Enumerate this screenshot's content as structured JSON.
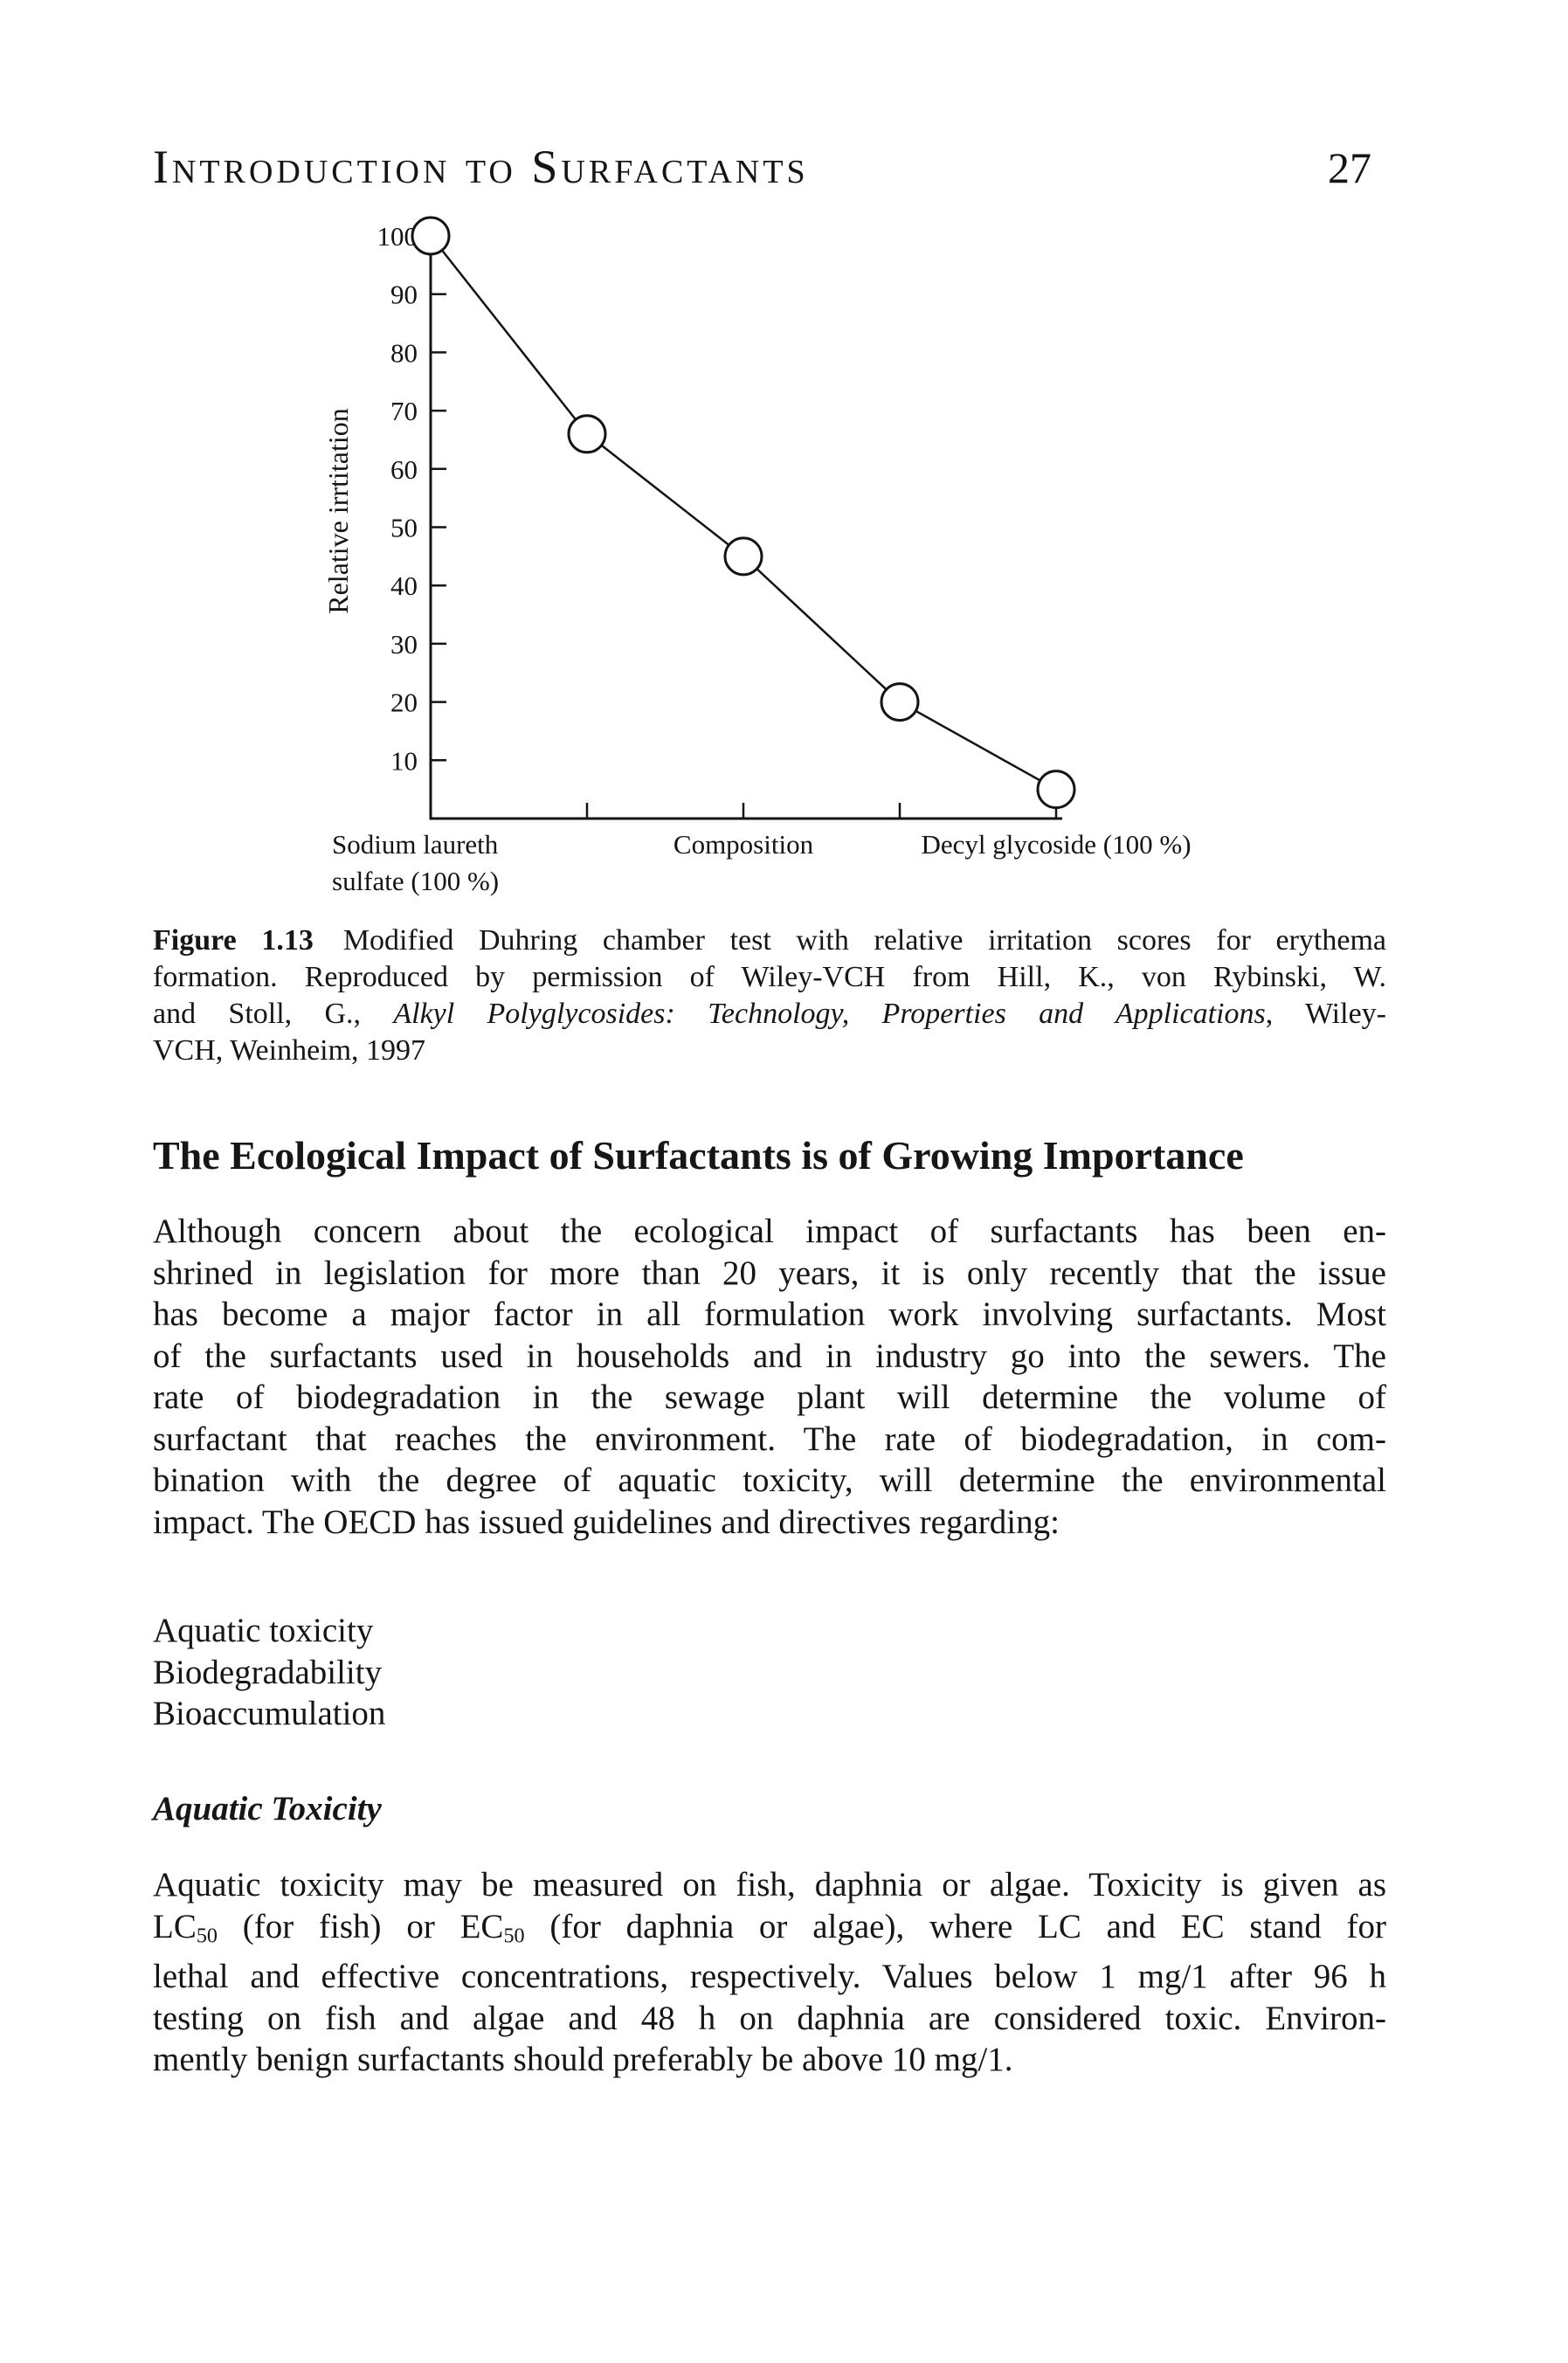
{
  "page": {
    "running_head": "Introduction to Surfactants",
    "number": "27"
  },
  "figure": {
    "caption_lines": [
      [
        {
          "t": "Figure 1.13",
          "b": true
        },
        {
          "t": " Modified Duhring chamber test with relative irritation scores for erythema"
        }
      ],
      "formation. Reproduced by permission of Wiley-VCH from Hill, K., von Rybinski, W.",
      [
        {
          "t": "and Stoll, G., "
        },
        {
          "t": "Alkyl Polyglycosides: Technology, Properties and Applications",
          "i": true
        },
        {
          "t": ", Wiley-"
        }
      ],
      "VCH, Weinheim, 1997"
    ],
    "chart_data": {
      "type": "line",
      "title": "",
      "xlabel": "Composition",
      "ylabel": "Relative irrtitation",
      "x": [
        0,
        25,
        50,
        75,
        100
      ],
      "values": [
        100,
        66,
        45,
        20,
        5
      ],
      "series_name": "Relative irritation score",
      "marker": "open-circle",
      "grid": false,
      "legend": "none",
      "ylim": [
        0,
        100
      ],
      "y_ticks": [
        10,
        20,
        30,
        40,
        50,
        60,
        70,
        80,
        90,
        100
      ],
      "x_ticks": [
        25,
        50,
        75,
        100
      ],
      "x_axis_labels": {
        "left": [
          "Sodium laureth",
          "sulfate (100 %)"
        ],
        "center": "Composition",
        "right": "Decyl glycoside (100 %)"
      }
    }
  },
  "section": {
    "heading": "The Ecological Impact of Surfactants is of Growing Importance",
    "paragraph1_lines": [
      "Although concern about the ecological impact of surfactants has been en-",
      "shrined in legislation for more than 20 years, it is only recently that the issue",
      "has become a major factor in all formulation work involving surfactants. Most",
      "of the surfactants used in households and in industry go into the sewers. The",
      "rate of biodegradation in the sewage plant will determine the volume of",
      "surfactant that reaches the environment. The rate of biodegradation, in com-",
      "bination with the degree of aquatic toxicity, will determine the environmental",
      "impact. The OECD has issued guidelines and directives regarding:"
    ],
    "list_items": [
      "Aquatic toxicity",
      "Biodegradability",
      "Bioaccumulation"
    ],
    "subsection_heading": "Aquatic Toxicity",
    "paragraph2_lines": [
      "Aquatic toxicity may be measured on fish, daphnia or algae. Toxicity is given as",
      [
        {
          "t": "LC"
        },
        {
          "t": "50",
          "sub": true
        },
        {
          "t": " (for fish) or EC"
        },
        {
          "t": "50",
          "sub": true
        },
        {
          "t": " (for daphnia or algae), where LC and EC stand for"
        }
      ],
      "lethal and effective concentrations, respectively. Values below 1 mg/1 after 96 h",
      "testing on fish and algae and 48 h on daphnia are considered toxic. Environ-",
      "mently benign surfactants should preferably be above 10 mg/1."
    ]
  }
}
